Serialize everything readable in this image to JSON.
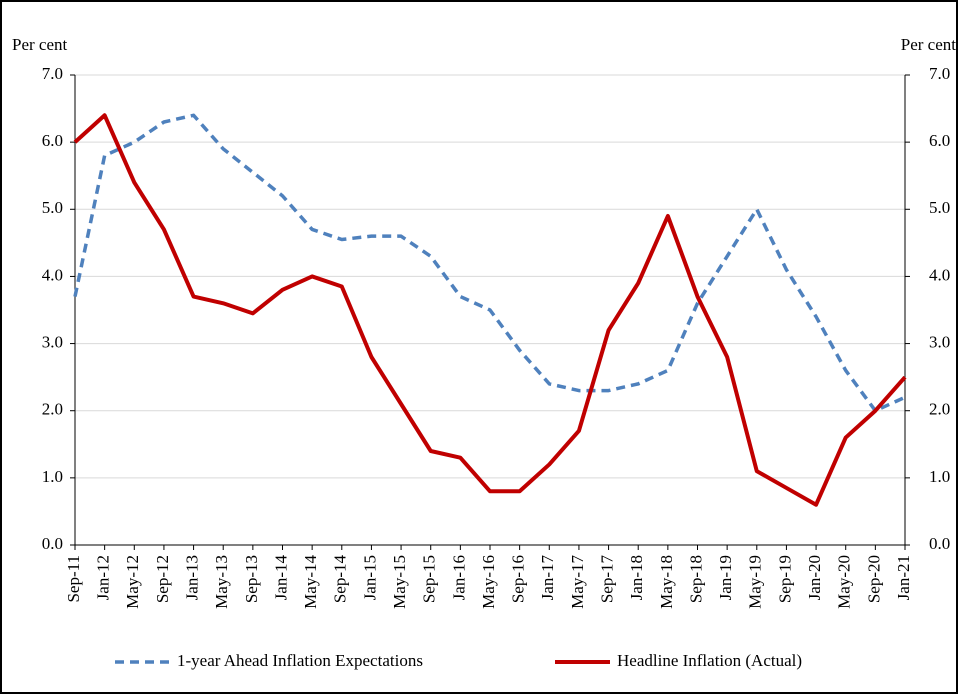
{
  "chart_data": {
    "type": "line",
    "y_label": "Per cent",
    "y2_label": "Per cent",
    "categories": [
      "Sep-11",
      "Jan-12",
      "May-12",
      "Sep-12",
      "Jan-13",
      "May-13",
      "Sep-13",
      "Jan-14",
      "May-14",
      "Sep-14",
      "Jan-15",
      "May-15",
      "Sep-15",
      "Jan-16",
      "May-16",
      "Sep-16",
      "Jan-17",
      "May-17",
      "Sep-17",
      "Jan-18",
      "May-18",
      "Sep-18",
      "Jan-19",
      "May-19",
      "Sep-19",
      "Jan-20",
      "May-20",
      "Sep-20",
      "Jan-21"
    ],
    "series": [
      {
        "name": "1-year Ahead Inflation Expectations",
        "color": "#4f81bd",
        "dashed": true,
        "values": [
          3.7,
          5.8,
          6.0,
          6.3,
          6.4,
          5.9,
          5.55,
          5.2,
          4.7,
          4.55,
          4.6,
          4.6,
          4.3,
          3.7,
          3.5,
          2.9,
          2.4,
          2.3,
          2.3,
          2.4,
          2.6,
          3.6,
          4.3,
          5.0,
          4.1,
          3.4,
          2.6,
          2.0,
          2.2
        ]
      },
      {
        "name": "Headline Inflation (Actual)",
        "color": "#c00000",
        "dashed": false,
        "values": [
          6.0,
          6.4,
          5.4,
          4.7,
          3.7,
          3.6,
          3.45,
          3.8,
          4.0,
          3.85,
          2.8,
          2.1,
          1.4,
          1.3,
          0.8,
          0.8,
          1.2,
          1.7,
          3.2,
          3.9,
          4.9,
          3.7,
          2.8,
          1.1,
          0.85,
          0.6,
          1.6,
          2.0,
          2.5
        ]
      }
    ],
    "ylim": [
      0,
      7
    ],
    "yticks": [
      {
        "value": 0,
        "label": "0.0"
      },
      {
        "value": 1,
        "label": "1.0"
      },
      {
        "value": 2,
        "label": "2.0"
      },
      {
        "value": 3,
        "label": "3.0"
      },
      {
        "value": 4,
        "label": "4.0"
      },
      {
        "value": 5,
        "label": "5.0"
      },
      {
        "value": 6,
        "label": "6.0"
      },
      {
        "value": 7,
        "label": "7.0"
      }
    ],
    "y2lim": [
      0,
      7
    ],
    "y2ticks": [
      {
        "value": 0,
        "label": "0.0"
      },
      {
        "value": 1,
        "label": "1.0"
      },
      {
        "value": 2,
        "label": "2.0"
      },
      {
        "value": 3,
        "label": "3.0"
      },
      {
        "value": 4,
        "label": "4.0"
      },
      {
        "value": 5,
        "label": "5.0"
      },
      {
        "value": 6,
        "label": "6.0"
      },
      {
        "value": 7,
        "label": "7.0"
      }
    ],
    "grid": true
  }
}
